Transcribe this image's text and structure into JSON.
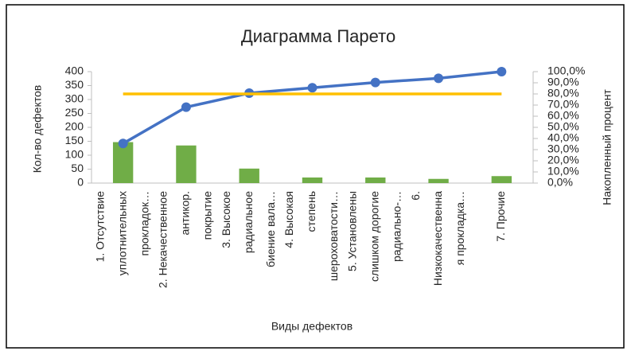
{
  "chart_data": {
    "type": "pareto",
    "title": "Диаграмма Парето",
    "x_label": "Виды дефектов",
    "y_label": "Кол-во дефектов",
    "y2_label": "Накопленный процент",
    "categories": [
      [
        "1. Отсутствие",
        "уплотнительных",
        "прокладок…"
      ],
      [
        "2. Некачественное",
        "антикор.",
        "покрытие"
      ],
      [
        "3. Высокое",
        "радиальное",
        "биение вала…"
      ],
      [
        "4. Высокая",
        "степень",
        "шероховатости…"
      ],
      [
        "5. Установлены",
        "слишком дорогие",
        "радиально-…"
      ],
      [
        "6.",
        "Низкокачественна",
        "я прокладка…"
      ],
      [
        "7. Прочие"
      ]
    ],
    "series": [
      {
        "type": "bar",
        "color": "#70ad47",
        "values": [
          147,
          135,
          52,
          20,
          20,
          15,
          25
        ]
      },
      {
        "type": "line",
        "axis": "y2",
        "color": "#4472c4",
        "marker": true,
        "values": [
          35.5,
          68.1,
          80.7,
          85.5,
          90.3,
          94.0,
          100
        ]
      },
      {
        "type": "line",
        "axis": "y2",
        "color": "#ffc000",
        "marker": false,
        "values": [
          80,
          80,
          80,
          80,
          80,
          80,
          80
        ]
      }
    ],
    "ylim": [
      0,
      400
    ],
    "yticks": [
      0,
      50,
      100,
      150,
      200,
      250,
      300,
      350,
      400
    ],
    "y2lim": [
      0,
      100
    ],
    "y2ticks": [
      {
        "value": 0,
        "label": "0,0%"
      },
      {
        "value": 10,
        "label": "10,0%"
      },
      {
        "value": 20,
        "label": "20,0%"
      },
      {
        "value": 30,
        "label": "30,0%"
      },
      {
        "value": 40,
        "label": "40,0%"
      },
      {
        "value": 50,
        "label": "50,0%"
      },
      {
        "value": 60,
        "label": "60,0%"
      },
      {
        "value": 70,
        "label": "70,0%"
      },
      {
        "value": 80,
        "label": "80,0%"
      },
      {
        "value": 90,
        "label": "90,0%"
      },
      {
        "value": 100,
        "label": "100,0%"
      }
    ]
  }
}
